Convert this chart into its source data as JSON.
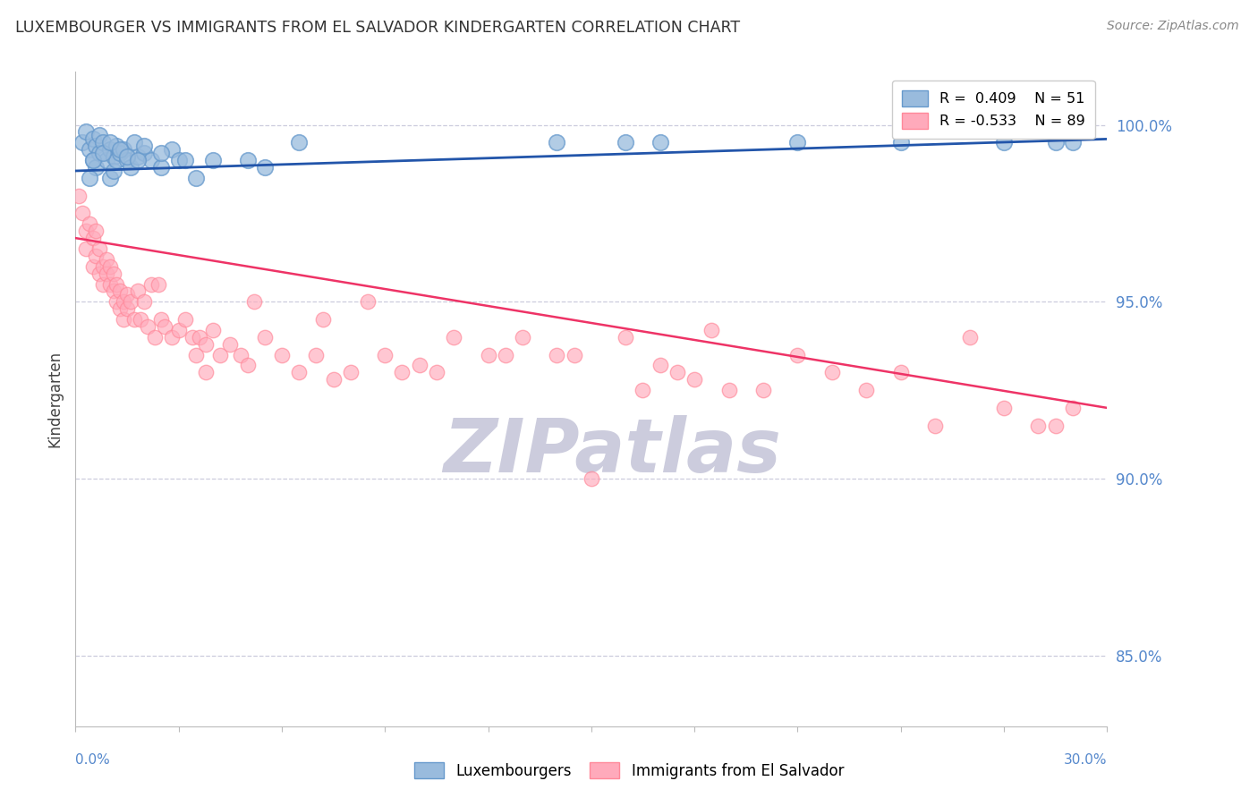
{
  "title": "LUXEMBOURGER VS IMMIGRANTS FROM EL SALVADOR KINDERGARTEN CORRELATION CHART",
  "source": "Source: ZipAtlas.com",
  "ylabel": "Kindergarten",
  "xlim": [
    0.0,
    30.0
  ],
  "ylim": [
    83.0,
    101.5
  ],
  "yticks": [
    85.0,
    90.0,
    95.0,
    100.0
  ],
  "legend_r_blue": "R =  0.409",
  "legend_n_blue": "N = 51",
  "legend_r_pink": "R = -0.533",
  "legend_n_pink": "N = 89",
  "legend_label_blue": "Luxembourgers",
  "legend_label_pink": "Immigrants from El Salvador",
  "blue_color": "#99BBDD",
  "pink_color": "#FFAABB",
  "blue_edge_color": "#6699CC",
  "pink_edge_color": "#FF8899",
  "trend_blue_color": "#2255AA",
  "trend_pink_color": "#EE3366",
  "background_color": "#FFFFFF",
  "axis_color": "#5588CC",
  "grid_color": "#CCCCDD",
  "watermark_color": "#CCCCDD",
  "blue_scatter_x": [
    0.2,
    0.3,
    0.4,
    0.5,
    0.5,
    0.6,
    0.6,
    0.7,
    0.7,
    0.8,
    0.9,
    1.0,
    1.0,
    1.1,
    1.1,
    1.2,
    1.2,
    1.3,
    1.4,
    1.5,
    1.6,
    1.7,
    1.8,
    2.0,
    2.2,
    2.5,
    2.8,
    3.0,
    3.5,
    4.0,
    5.0,
    5.5,
    6.5,
    14.0,
    16.0,
    17.0,
    21.0,
    24.0,
    27.0,
    28.5,
    29.0,
    0.4,
    0.5,
    0.8,
    1.0,
    1.3,
    1.5,
    1.8,
    2.0,
    2.5,
    3.2
  ],
  "blue_scatter_y": [
    99.5,
    99.8,
    99.3,
    99.6,
    99.0,
    99.4,
    98.8,
    99.7,
    99.2,
    99.5,
    99.0,
    99.3,
    98.5,
    99.1,
    98.7,
    99.4,
    99.0,
    99.2,
    99.3,
    99.0,
    98.8,
    99.5,
    99.1,
    99.2,
    99.0,
    98.8,
    99.3,
    99.0,
    98.5,
    99.0,
    99.0,
    98.8,
    99.5,
    99.5,
    99.5,
    99.5,
    99.5,
    99.5,
    99.5,
    99.5,
    99.5,
    98.5,
    99.0,
    99.2,
    99.5,
    99.3,
    99.1,
    99.0,
    99.4,
    99.2,
    99.0
  ],
  "pink_scatter_x": [
    0.1,
    0.2,
    0.3,
    0.3,
    0.4,
    0.5,
    0.5,
    0.6,
    0.6,
    0.7,
    0.7,
    0.8,
    0.8,
    0.9,
    0.9,
    1.0,
    1.0,
    1.1,
    1.1,
    1.2,
    1.2,
    1.3,
    1.3,
    1.4,
    1.4,
    1.5,
    1.5,
    1.6,
    1.7,
    1.8,
    1.9,
    2.0,
    2.1,
    2.2,
    2.3,
    2.5,
    2.6,
    2.8,
    3.0,
    3.2,
    3.4,
    3.5,
    3.6,
    3.8,
    4.0,
    4.2,
    4.5,
    4.8,
    5.0,
    5.5,
    6.0,
    6.5,
    7.0,
    7.5,
    8.0,
    9.0,
    10.0,
    11.0,
    12.0,
    13.0,
    14.5,
    16.0,
    17.5,
    18.5,
    20.0,
    21.0,
    24.0,
    26.0,
    2.4,
    3.8,
    5.2,
    7.2,
    8.5,
    9.5,
    10.5,
    12.5,
    14.0,
    16.5,
    17.0,
    18.0,
    19.0,
    22.0,
    23.0,
    25.0,
    27.0,
    28.0,
    29.0,
    28.5,
    15.0
  ],
  "pink_scatter_y": [
    98.0,
    97.5,
    97.0,
    96.5,
    97.2,
    96.8,
    96.0,
    97.0,
    96.3,
    96.5,
    95.8,
    96.0,
    95.5,
    96.2,
    95.8,
    95.5,
    96.0,
    95.8,
    95.3,
    95.5,
    95.0,
    95.3,
    94.8,
    95.0,
    94.5,
    95.2,
    94.8,
    95.0,
    94.5,
    95.3,
    94.5,
    95.0,
    94.3,
    95.5,
    94.0,
    94.5,
    94.3,
    94.0,
    94.2,
    94.5,
    94.0,
    93.5,
    94.0,
    93.8,
    94.2,
    93.5,
    93.8,
    93.5,
    93.2,
    94.0,
    93.5,
    93.0,
    93.5,
    92.8,
    93.0,
    93.5,
    93.2,
    94.0,
    93.5,
    94.0,
    93.5,
    94.0,
    93.0,
    94.2,
    92.5,
    93.5,
    93.0,
    94.0,
    95.5,
    93.0,
    95.0,
    94.5,
    95.0,
    93.0,
    93.0,
    93.5,
    93.5,
    92.5,
    93.2,
    92.8,
    92.5,
    93.0,
    92.5,
    91.5,
    92.0,
    91.5,
    92.0,
    91.5,
    90.0
  ],
  "blue_trend_x": [
    0.0,
    30.0
  ],
  "blue_trend_y": [
    98.7,
    99.6
  ],
  "pink_trend_x": [
    0.0,
    30.0
  ],
  "pink_trend_y": [
    96.8,
    92.0
  ]
}
